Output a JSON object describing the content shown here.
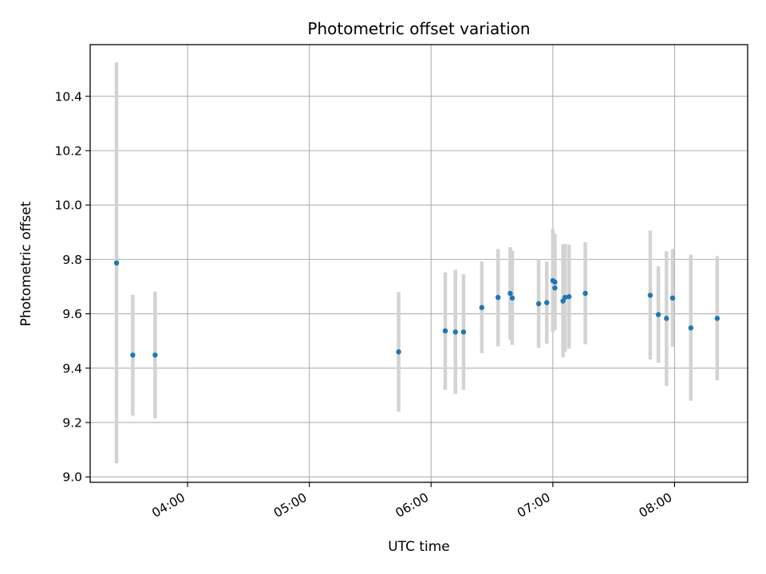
{
  "chart_data": {
    "type": "scatter",
    "title": "Photometric offset variation",
    "xlabel": "UTC time",
    "ylabel": "Photometric offset",
    "x_unit": "hh:mm",
    "xlim": [
      "03:12",
      "08:36"
    ],
    "ylim": [
      8.98,
      10.59
    ],
    "x_ticks": [
      "04:00",
      "05:00",
      "06:00",
      "07:00",
      "08:00"
    ],
    "y_ticks": [
      9.0,
      9.2,
      9.4,
      9.6,
      9.8,
      10.0,
      10.2,
      10.4
    ],
    "grid": true,
    "colors": {
      "point": "#1f77b4",
      "errorbar": "#d3d3d3",
      "grid": "#b0b0b0",
      "axes": "#000000"
    },
    "points": [
      {
        "time": "03:25",
        "y": 9.787,
        "low": 9.05,
        "high": 10.525
      },
      {
        "time": "03:33",
        "y": 9.448,
        "low": 9.225,
        "high": 9.67
      },
      {
        "time": "03:44",
        "y": 9.448,
        "low": 9.215,
        "high": 9.682
      },
      {
        "time": "05:44",
        "y": 9.46,
        "low": 9.24,
        "high": 9.68
      },
      {
        "time": "06:07",
        "y": 9.537,
        "low": 9.32,
        "high": 9.752
      },
      {
        "time": "06:12",
        "y": 9.533,
        "low": 9.305,
        "high": 9.762
      },
      {
        "time": "06:16",
        "y": 9.533,
        "low": 9.32,
        "high": 9.745
      },
      {
        "time": "06:25",
        "y": 9.623,
        "low": 9.455,
        "high": 9.792
      },
      {
        "time": "06:33",
        "y": 9.66,
        "low": 9.48,
        "high": 9.838
      },
      {
        "time": "06:39",
        "y": 9.675,
        "low": 9.505,
        "high": 9.845
      },
      {
        "time": "06:40",
        "y": 9.658,
        "low": 9.485,
        "high": 9.832
      },
      {
        "time": "06:53",
        "y": 9.637,
        "low": 9.475,
        "high": 9.8
      },
      {
        "time": "06:57",
        "y": 9.641,
        "low": 9.49,
        "high": 9.792
      },
      {
        "time": "07:00",
        "y": 9.722,
        "low": 9.532,
        "high": 9.912
      },
      {
        "time": "07:01",
        "y": 9.717,
        "low": 9.54,
        "high": 9.895
      },
      {
        "time": "07:01",
        "y": 9.695,
        "low": 9.555,
        "high": 9.836
      },
      {
        "time": "07:05",
        "y": 9.647,
        "low": 9.44,
        "high": 9.855
      },
      {
        "time": "07:06",
        "y": 9.66,
        "low": 9.46,
        "high": 9.857
      },
      {
        "time": "07:08",
        "y": 9.663,
        "low": 9.472,
        "high": 9.855
      },
      {
        "time": "07:16",
        "y": 9.675,
        "low": 9.488,
        "high": 9.863
      },
      {
        "time": "07:48",
        "y": 9.668,
        "low": 9.432,
        "high": 9.906
      },
      {
        "time": "07:52",
        "y": 9.597,
        "low": 9.42,
        "high": 9.775
      },
      {
        "time": "07:56",
        "y": 9.583,
        "low": 9.335,
        "high": 9.83
      },
      {
        "time": "07:59",
        "y": 9.658,
        "low": 9.478,
        "high": 9.838
      },
      {
        "time": "08:08",
        "y": 9.548,
        "low": 9.28,
        "high": 9.817
      },
      {
        "time": "08:21",
        "y": 9.583,
        "low": 9.355,
        "high": 9.812
      }
    ]
  }
}
